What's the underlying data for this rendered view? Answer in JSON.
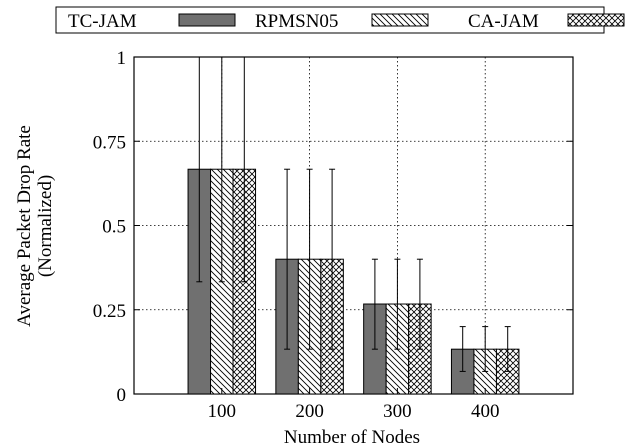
{
  "chart_data": {
    "type": "bar",
    "xlabel": "Number of Nodes",
    "ylabel": [
      "Average Packet Drop Rate",
      "(Normalized)"
    ],
    "categories": [
      "100",
      "200",
      "300",
      "400"
    ],
    "ylim": [
      0,
      1
    ],
    "yticks": [
      0,
      0.25,
      0.5,
      0.75,
      1
    ],
    "ytick_labels": [
      "0",
      "0.25",
      "0.5",
      "0.75",
      "1"
    ],
    "grid": true,
    "legend_position": "top",
    "series": [
      {
        "name": "TC-JAM",
        "values": [
          0.667,
          0.4,
          0.267,
          0.133
        ],
        "err_low": [
          0.333,
          0.133,
          0.133,
          0.067
        ],
        "err_high": [
          1.0,
          0.667,
          0.4,
          0.2
        ],
        "pattern": "solid",
        "color": "#707070"
      },
      {
        "name": "RPMSN05",
        "values": [
          0.667,
          0.4,
          0.267,
          0.133
        ],
        "err_low": [
          0.333,
          0.133,
          0.133,
          0.067
        ],
        "err_high": [
          1.0,
          0.667,
          0.4,
          0.2
        ],
        "pattern": "diagonal",
        "color": "#000000"
      },
      {
        "name": "CA-JAM",
        "values": [
          0.667,
          0.4,
          0.267,
          0.133
        ],
        "err_low": [
          0.333,
          0.133,
          0.133,
          0.067
        ],
        "err_high": [
          1.0,
          0.667,
          0.4,
          0.2
        ],
        "pattern": "crosshatch",
        "color": "#000000"
      }
    ]
  }
}
